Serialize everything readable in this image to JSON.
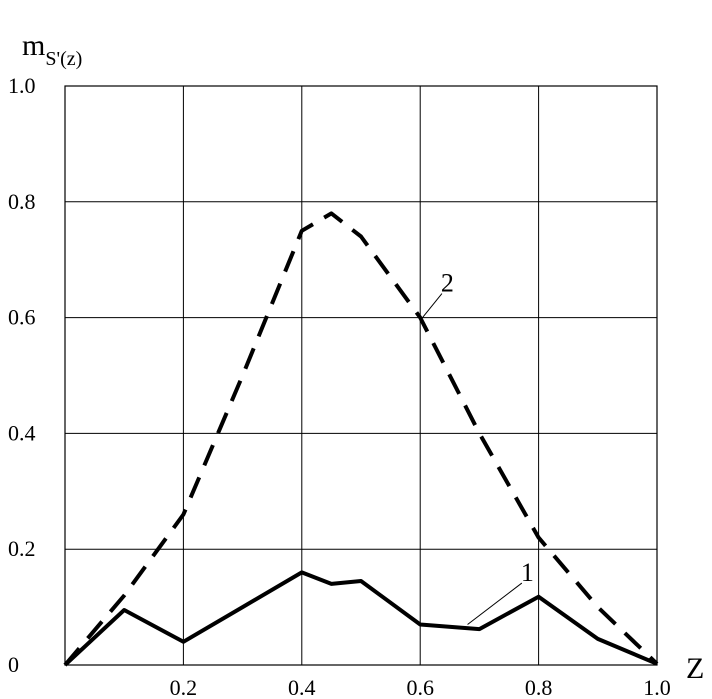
{
  "chart_data": {
    "type": "line",
    "title": "",
    "xlabel": "Z",
    "ylabel": {
      "main": "m",
      "subscript": "S'(z)"
    },
    "xlim": [
      0,
      1.0
    ],
    "ylim": [
      0,
      1.0
    ],
    "grid": true,
    "x_ticks": [
      {
        "value": 0.2,
        "label": "0.2"
      },
      {
        "value": 0.4,
        "label": "0.4"
      },
      {
        "value": 0.6,
        "label": "0.6"
      },
      {
        "value": 0.8,
        "label": "0.8"
      },
      {
        "value": 1.0,
        "label": "1.0"
      }
    ],
    "y_ticks": [
      {
        "value": 0,
        "label": "0"
      },
      {
        "value": 0.2,
        "label": "0.2"
      },
      {
        "value": 0.4,
        "label": "0.4"
      },
      {
        "value": 0.6,
        "label": "0.6"
      },
      {
        "value": 0.8,
        "label": "0.8"
      },
      {
        "value": 1.0,
        "label": "1.0"
      }
    ],
    "series": [
      {
        "label": "1",
        "style": "solid",
        "points": [
          [
            0,
            0
          ],
          [
            0.1,
            0.095
          ],
          [
            0.2,
            0.04
          ],
          [
            0.3,
            0.1
          ],
          [
            0.4,
            0.16
          ],
          [
            0.45,
            0.14
          ],
          [
            0.5,
            0.145
          ],
          [
            0.6,
            0.07
          ],
          [
            0.7,
            0.062
          ],
          [
            0.8,
            0.118
          ],
          [
            0.9,
            0.045
          ],
          [
            1.0,
            0.002
          ]
        ],
        "label_position": {
          "x": 0.77,
          "y": 0.145
        },
        "leader_end": {
          "x": 0.68,
          "y": 0.07
        }
      },
      {
        "label": "2",
        "style": "dashed",
        "points": [
          [
            0,
            0
          ],
          [
            0.1,
            0.12
          ],
          [
            0.2,
            0.26
          ],
          [
            0.3,
            0.5
          ],
          [
            0.4,
            0.75
          ],
          [
            0.45,
            0.78
          ],
          [
            0.5,
            0.74
          ],
          [
            0.6,
            0.6
          ],
          [
            0.7,
            0.4
          ],
          [
            0.8,
            0.22
          ],
          [
            0.9,
            0.1
          ],
          [
            1.0,
            0.002
          ]
        ],
        "label_position": {
          "x": 0.635,
          "y": 0.645
        },
        "leader_end": {
          "x": 0.6,
          "y": 0.595
        }
      }
    ]
  }
}
